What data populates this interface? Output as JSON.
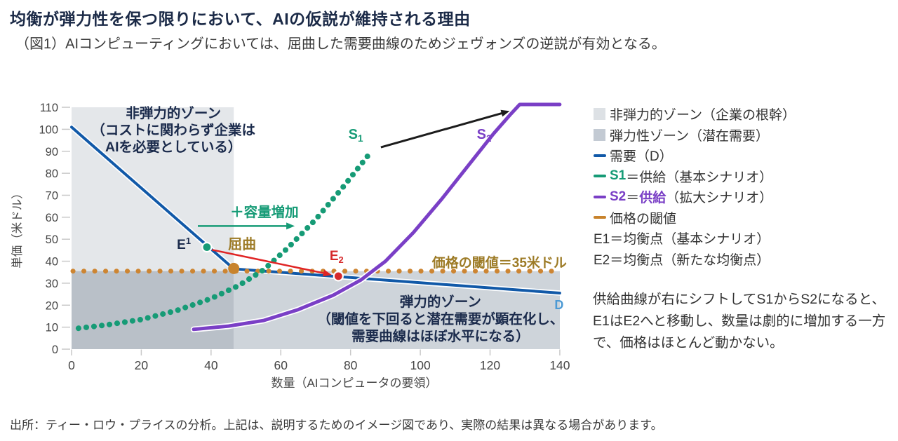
{
  "page": {
    "title": "均衡が弾力性を保つ限りにおいて、AIの仮説が維持される理由",
    "subtitle": "（図1）AIコンピューティングにおいては、屈曲した需要曲線のためジェヴォンズの逆説が有効となる。",
    "source_note": "出所：ティー・ロウ・プライスの分析。上記は、説明するためのイメージ図であり、実際の結果は異なる場合があります。"
  },
  "caption": {
    "text": "供給曲線が右にシフトしてS1からS2になると、E1はE2へと移動し、数量は劇的に増加する一方で、価格はほとんど動かない。"
  },
  "legend": {
    "items": [
      {
        "id": "zone-inelastic",
        "swatch": "square",
        "color": "#dde1e5",
        "segments": [
          {
            "text": "非弾力的ゾーン（企業の根幹）"
          }
        ]
      },
      {
        "id": "zone-elastic",
        "swatch": "square",
        "color": "#c3cad3",
        "segments": [
          {
            "text": "弾力性ゾーン（潜在需要）"
          }
        ]
      },
      {
        "id": "demand",
        "swatch": "dash",
        "color": "#1159a8",
        "segments": [
          {
            "text": "需要（D）"
          }
        ]
      },
      {
        "id": "s1",
        "swatch": "dash",
        "color": "#169b76",
        "segments": [
          {
            "text": "S1",
            "color": "#169b76",
            "bold": true
          },
          {
            "text": "＝供給（基本シナリオ）"
          }
        ]
      },
      {
        "id": "s2",
        "swatch": "dash",
        "color": "#7a3fc6",
        "segments": [
          {
            "text": "S2",
            "color": "#7a3fc6",
            "bold": true
          },
          {
            "text": "＝"
          },
          {
            "text": "供給",
            "color": "#7a3fc6",
            "bold": true
          },
          {
            "text": "（拡大シナリオ）"
          }
        ]
      },
      {
        "id": "threshold",
        "swatch": "dash",
        "color": "#c8832c",
        "segments": [
          {
            "text": "価格の閾値"
          }
        ]
      },
      {
        "id": "e1",
        "swatch": "none",
        "segments": [
          {
            "text": "E1＝均衡点（基本シナリオ）"
          }
        ]
      },
      {
        "id": "e2",
        "swatch": "none",
        "segments": [
          {
            "text": "E2＝均衡点（新たな均衡点）"
          }
        ]
      }
    ]
  },
  "chart_data": {
    "type": "line",
    "xlabel": "数量（AIコンピュータの要領）",
    "ylabel": "単価（米ドル）",
    "xlim": [
      0,
      140
    ],
    "ylim": [
      0,
      110
    ],
    "xticks": [
      0,
      20,
      40,
      60,
      80,
      100,
      120,
      140
    ],
    "yticks": [
      0,
      10,
      20,
      30,
      40,
      50,
      60,
      70,
      80,
      90,
      100,
      110
    ],
    "grid": false,
    "threshold_price": 35,
    "zones": [
      {
        "id": "zone-inelastic",
        "label": "非弾力的ゾーン（企業の根幹）",
        "x0": 0,
        "x1": 46.5,
        "y0": 0,
        "y1": 110,
        "color": "#e4e7ea"
      },
      {
        "id": "zone-elastic-overlap",
        "label": "弾力性ゾーン（重なり）",
        "x0": 0,
        "x1": 46.5,
        "y0": 0,
        "y1": 35.5,
        "color": "#b9c0c8"
      },
      {
        "id": "zone-elastic",
        "label": "弾力性ゾーン（潜在需要）",
        "x0": 46.5,
        "x1": 140,
        "y0": 0,
        "y1": 35.5,
        "color": "#ced4da"
      }
    ],
    "series": [
      {
        "id": "demand",
        "name": "需要（D）",
        "style": "solid",
        "color": "#1159a8",
        "casing": "#ffffff",
        "width": 4,
        "points": [
          [
            0,
            101
          ],
          [
            46.5,
            36.5
          ],
          [
            140,
            25.5
          ]
        ]
      },
      {
        "id": "threshold",
        "name": "価格の閾値",
        "style": "dotted",
        "color": "#cd8532",
        "width": 7,
        "gap": 15.4,
        "points": [
          [
            0.4,
            35.5
          ],
          [
            140,
            35.5
          ]
        ]
      },
      {
        "id": "s1",
        "name": "S1＝供給（基本シナリオ）",
        "style": "dotted",
        "color": "#169b76",
        "width": 8,
        "gap": 11,
        "points": [
          [
            2,
            9.5
          ],
          [
            10,
            11
          ],
          [
            20,
            13.5
          ],
          [
            30,
            17.5
          ],
          [
            40,
            23
          ],
          [
            48,
            29
          ],
          [
            55,
            36
          ],
          [
            62,
            46
          ],
          [
            70,
            59
          ],
          [
            78,
            74
          ],
          [
            85,
            88
          ]
        ]
      },
      {
        "id": "s2",
        "name": "S2＝供給（拡大シナリオ）",
        "style": "solid",
        "color": "#7a3fc6",
        "casing": "#ffffff",
        "width": 5,
        "points": [
          [
            35,
            9
          ],
          [
            45,
            10.5
          ],
          [
            55,
            13
          ],
          [
            65,
            18
          ],
          [
            75,
            24.5
          ],
          [
            83,
            31.5
          ],
          [
            90,
            40
          ],
          [
            98,
            53
          ],
          [
            106,
            68
          ],
          [
            114,
            84
          ],
          [
            121,
            98
          ],
          [
            126,
            107
          ],
          [
            128.5,
            111.3
          ],
          [
            140,
            111.3
          ]
        ]
      }
    ],
    "markers": [
      {
        "id": "e1-point",
        "label": "E1 均衡点（基本シナリオ）",
        "x": 38.8,
        "y": 46.4,
        "color": "#169b76",
        "ring": "#ffffff",
        "r": 6.5
      },
      {
        "id": "kink-point",
        "label": "屈曲点",
        "x": 46.5,
        "y": 36.7,
        "color": "#c8832c",
        "r": 8
      },
      {
        "id": "e2-point",
        "label": "E2 均衡点（新たな均衡点）",
        "x": 76.5,
        "y": 33.2,
        "color": "#d6292b",
        "ring": "#ffffff",
        "r": 6.5
      }
    ],
    "arrows": [
      {
        "id": "capacity-arrow",
        "color": "#169b76",
        "width": 2.5,
        "from": [
          36.2,
          56
        ],
        "to": [
          64,
          56
        ]
      },
      {
        "id": "shift-arrow",
        "color": "#1c1c1c",
        "width": 3,
        "from": [
          88.7,
          91.8
        ],
        "to": [
          125.6,
          108.3
        ]
      },
      {
        "id": "kink-arrow",
        "color": "#e02424",
        "width": 2.5,
        "from": [
          40.3,
          45.2
        ],
        "to": [
          74.6,
          33.8
        ]
      }
    ],
    "annotations": [
      {
        "id": "inelastic-zone-title",
        "lines": [
          "非弾力的ゾーン",
          "（コストに関わらず企業は",
          "AIを必要としている）"
        ],
        "x": 29.2,
        "y": 105.2,
        "lineStepPx": 24,
        "color": "#1b2b4c",
        "size": 19.5,
        "weight": 700,
        "anchor": "middle"
      },
      {
        "id": "elastic-zone-title",
        "lines": [
          "弾力的ゾーン",
          "（閾値を下回ると潜在需要が顕在化し、",
          "需要曲線はほぼ水平になる）"
        ],
        "x": 105.8,
        "y": 19.5,
        "lineStepPx": 24.5,
        "color": "#1b2b4c",
        "size": 19.5,
        "weight": 700,
        "anchor": "middle"
      },
      {
        "id": "capacity-label",
        "text": "＋容量増加",
        "x": 55.3,
        "y": 60.3,
        "color": "#169b76",
        "size": 19.5,
        "weight": 700,
        "anchor": "middle"
      },
      {
        "id": "kink-label",
        "text": "屈曲",
        "x": 48.9,
        "y": 45.6,
        "color": "#9d7b26",
        "size": 20,
        "weight": 700,
        "anchor": "middle"
      },
      {
        "id": "threshold-label",
        "text": "価格の閾値＝35米ドル",
        "x": 142,
        "y": 37.3,
        "color": "#9d7b26",
        "size": 19,
        "weight": 700,
        "anchor": "end"
      },
      {
        "id": "e1-label",
        "base": "E",
        "script": "1",
        "scriptPos": "sup",
        "x": 32.2,
        "y": 45.6,
        "color": "#1b2b4c",
        "size": 19,
        "weight": 700,
        "anchor": "middle"
      },
      {
        "id": "e2-label",
        "base": "E",
        "script": "2",
        "scriptPos": "sub",
        "x": 76,
        "y": 40.5,
        "color": "#d6292b",
        "size": 19,
        "weight": 700,
        "anchor": "middle"
      },
      {
        "id": "s1-label",
        "base": "S",
        "script": "1",
        "scriptPos": "sub",
        "x": 81.5,
        "y": 95.7,
        "color": "#169b76",
        "size": 20,
        "weight": 700,
        "anchor": "middle"
      },
      {
        "id": "s2-label",
        "base": "S",
        "script": "2",
        "scriptPos": "sub",
        "x": 118.3,
        "y": 95.7,
        "color": "#7a3fc6",
        "size": 20,
        "weight": 700,
        "anchor": "middle"
      },
      {
        "id": "d-label",
        "text": "D",
        "x": 139.8,
        "y": 18.2,
        "color": "#4d9ad4",
        "size": 18,
        "weight": 700,
        "anchor": "middle"
      }
    ]
  }
}
